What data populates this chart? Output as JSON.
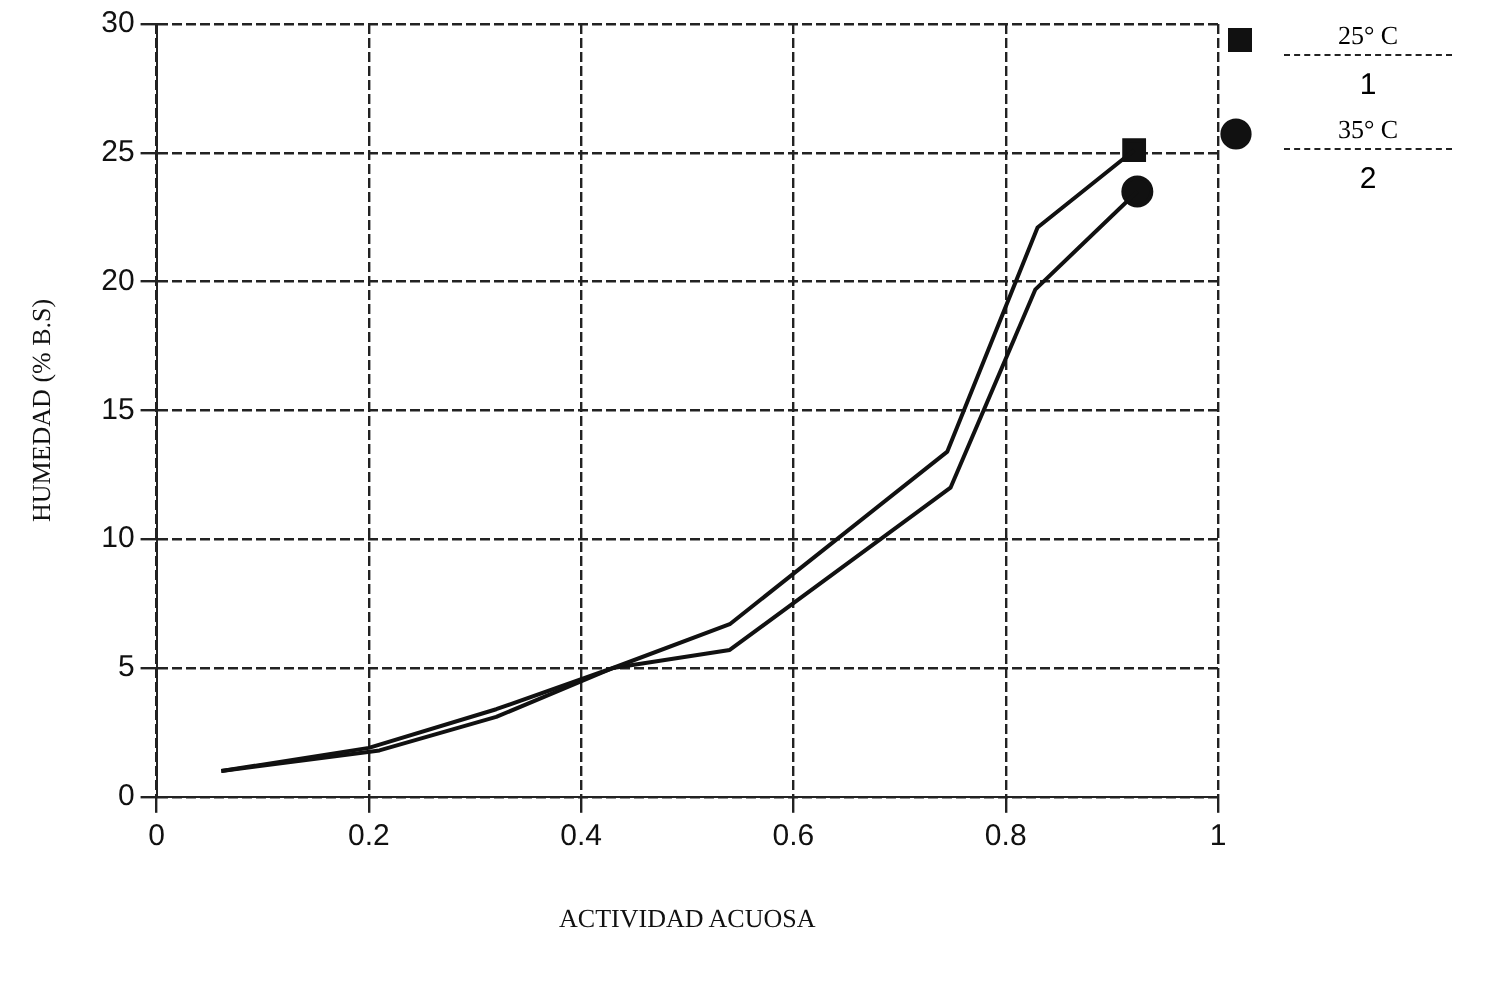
{
  "chart_data": {
    "type": "line",
    "xlabel": "ACTIVIDAD ACUOSA",
    "ylabel": "HUMEDAD (% B.S)",
    "xlim": [
      0,
      1
    ],
    "xticks": [
      0,
      0.2,
      0.4,
      0.6,
      0.8,
      1
    ],
    "ylim": [
      0,
      30
    ],
    "yticks": [
      0,
      5,
      10,
      15,
      20,
      25,
      30
    ],
    "grid": true,
    "legend": "top right",
    "line_style": "solid",
    "annotations": [
      "1",
      "2"
    ],
    "series": [
      {
        "color": "#111111",
        "marker": "none",
        "x": [
          0.061,
          0.2,
          0.32,
          0.43,
          0.54,
          0.745,
          0.83,
          0.921
        ],
        "values": [
          1.0,
          1.9,
          3.4,
          5.0,
          6.7,
          13.4,
          22.1,
          25.1
        ]
      },
      {
        "color": "#111111",
        "marker": "none",
        "x": [
          0.061,
          0.21,
          0.32,
          0.43,
          0.54,
          0.748,
          0.828,
          0.924
        ],
        "values": [
          1.0,
          1.8,
          3.1,
          5.0,
          5.7,
          12.0,
          19.7,
          23.5
        ]
      },
      {
        "type": "scatter",
        "name": "25° C",
        "color": "#111111",
        "marker": "square",
        "x": [
          0.921
        ],
        "values": [
          25.1
        ]
      },
      {
        "type": "scatter",
        "name": "35° C",
        "color": "#111111",
        "marker": "circle",
        "x": [
          0.924
        ],
        "values": [
          23.5
        ]
      }
    ]
  }
}
